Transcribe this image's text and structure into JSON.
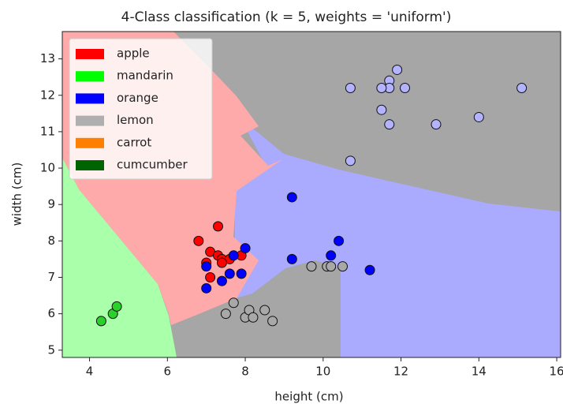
{
  "chart_data": {
    "type": "scatter",
    "title": "4-Class classification (k = 5, weights = 'uniform')",
    "x_label": "height (cm)",
    "y_label": "width (cm)",
    "xlim": [
      3.3,
      16.1
    ],
    "ylim": [
      4.8,
      13.75
    ],
    "xticks": [
      4,
      6,
      8,
      10,
      12,
      14,
      16
    ],
    "yticks": [
      5,
      6,
      7,
      8,
      9,
      10,
      11,
      12,
      13
    ],
    "legend_position": "upper left",
    "legend": [
      {
        "name": "apple",
        "color": "#ff0000"
      },
      {
        "name": "mandarin",
        "color": "#00ff00"
      },
      {
        "name": "orange",
        "color": "#0000ff"
      },
      {
        "name": "lemon",
        "color": "#afafaf"
      },
      {
        "name": "carrot",
        "color": "#ff8000"
      },
      {
        "name": "cumcumber",
        "color": "#006400"
      }
    ],
    "series": [
      {
        "color": "#ff0000",
        "x": [
          6.8,
          7.3,
          7.1,
          7.3,
          7.0,
          7.4,
          7.6,
          7.9,
          7.1,
          7.4
        ],
        "y": [
          8.0,
          8.4,
          7.7,
          7.6,
          7.4,
          7.5,
          7.5,
          7.6,
          7.0,
          7.4
        ]
      },
      {
        "color": "#2bd12b",
        "x": [
          4.3,
          4.6,
          4.7
        ],
        "y": [
          5.8,
          6.0,
          6.2
        ]
      },
      {
        "color": "#0000ff",
        "x": [
          9.2,
          8.0,
          9.2,
          10.4,
          10.2,
          11.2,
          7.0,
          7.0,
          7.4,
          7.6,
          7.9,
          7.7
        ],
        "y": [
          9.2,
          7.8,
          7.5,
          8.0,
          7.6,
          7.2,
          7.3,
          6.7,
          6.9,
          7.1,
          7.1,
          7.6
        ]
      },
      {
        "color": "#b3b3ff",
        "x": [
          10.7,
          11.9,
          11.7,
          11.7,
          11.5,
          12.1,
          11.5,
          11.7,
          12.9,
          14.0,
          15.1,
          10.7
        ],
        "y": [
          12.2,
          12.7,
          12.4,
          12.2,
          12.2,
          12.2,
          11.6,
          11.2,
          11.2,
          11.4,
          12.2,
          10.2
        ]
      },
      {
        "color": "#a8a8a8",
        "x": [
          7.7,
          7.5,
          8.0,
          8.1,
          8.5,
          8.7,
          8.2,
          9.7,
          10.1,
          10.2,
          10.5
        ],
        "y": [
          6.3,
          6.0,
          5.9,
          6.1,
          6.1,
          5.8,
          5.9,
          7.3,
          7.3,
          7.3,
          7.3
        ]
      }
    ]
  }
}
